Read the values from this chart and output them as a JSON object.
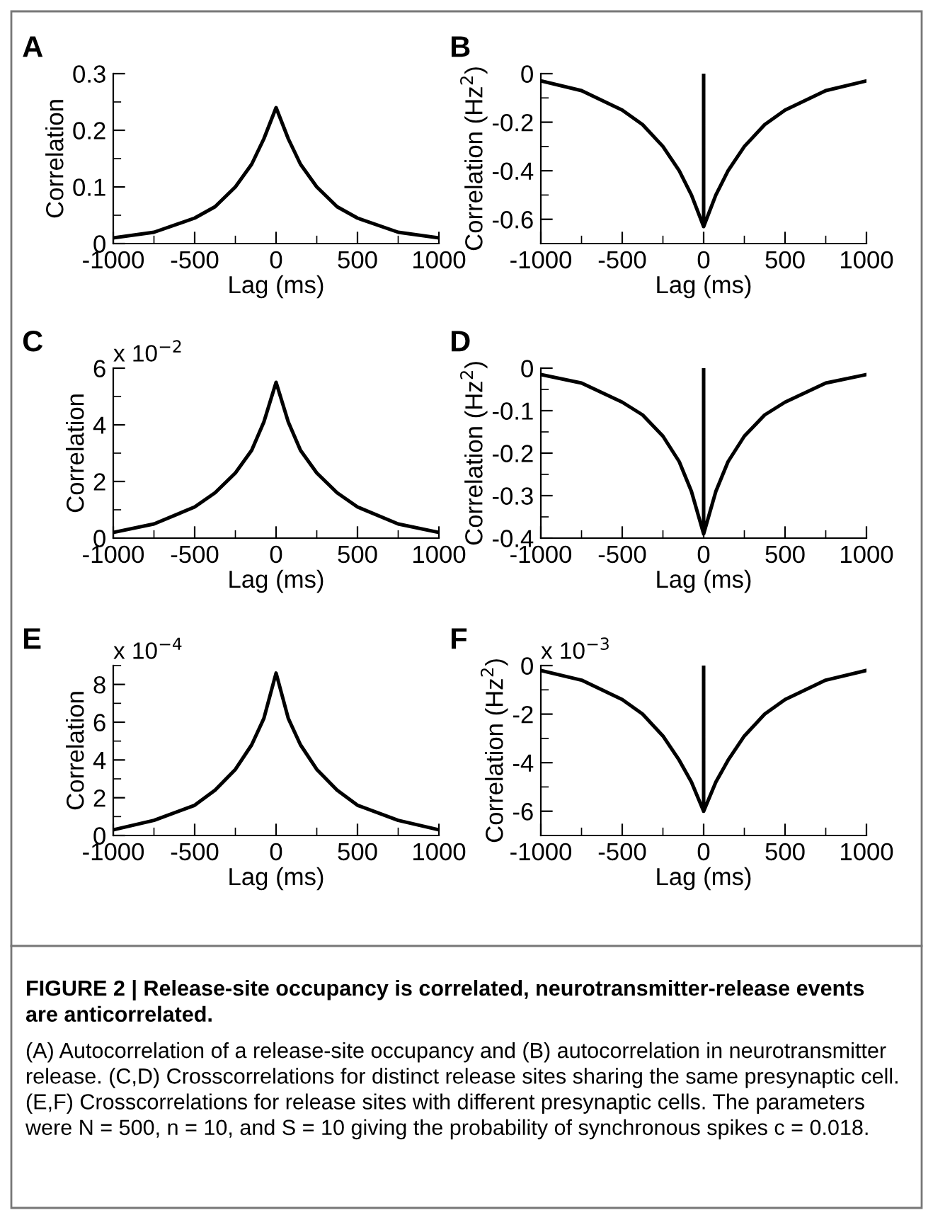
{
  "chart_data": [
    {
      "type": "line",
      "title": "A",
      "xlabel": "Lag (ms)",
      "ylabel": "Correlation",
      "xlim": [
        -1000,
        1000
      ],
      "xticks": [
        -1000,
        -500,
        0,
        500,
        1000
      ],
      "ylim": [
        0,
        0.3
      ],
      "yticks": [
        0,
        0.1,
        0.2,
        0.3
      ],
      "grid": false,
      "legend": false,
      "series": [
        {
          "color": "#000000",
          "x": [
            -1000,
            -750,
            -500,
            -375,
            -250,
            -150,
            -75,
            0,
            75,
            150,
            250,
            375,
            500,
            750,
            1000
          ],
          "values": [
            0.01,
            0.02,
            0.045,
            0.065,
            0.1,
            0.14,
            0.185,
            0.24,
            0.185,
            0.14,
            0.1,
            0.065,
            0.045,
            0.02,
            0.01
          ]
        }
      ]
    },
    {
      "type": "line",
      "title": "B",
      "xlabel": "Lag (ms)",
      "ylabel": "Correlation (Hz$^{2}$)",
      "xlim": [
        -1000,
        1000
      ],
      "xticks": [
        -1000,
        -500,
        0,
        500,
        1000
      ],
      "ylim": [
        -0.7,
        0
      ],
      "yticks": [
        -0.6,
        -0.4,
        -0.2,
        0
      ],
      "grid": false,
      "legend": false,
      "series": [
        {
          "color": "#000000",
          "x": [
            -1000,
            -750,
            -500,
            -375,
            -250,
            -150,
            -75,
            0,
            0,
            0,
            75,
            150,
            250,
            375,
            500,
            750,
            1000
          ],
          "values": [
            -0.03,
            -0.07,
            -0.15,
            -0.21,
            -0.3,
            -0.4,
            -0.5,
            -0.63,
            0,
            -0.63,
            -0.5,
            -0.4,
            -0.3,
            -0.21,
            -0.15,
            -0.07,
            -0.03
          ]
        }
      ]
    },
    {
      "type": "line",
      "title": "C",
      "xlabel": "Lag (ms)",
      "ylabel": "Correlation",
      "annotations": [
        "x 10$^{−2}$"
      ],
      "xlim": [
        -1000,
        1000
      ],
      "xticks": [
        -1000,
        -500,
        0,
        500,
        1000
      ],
      "ylim": [
        0,
        6
      ],
      "yticks": [
        0,
        2,
        4,
        6
      ],
      "grid": false,
      "legend": false,
      "series": [
        {
          "color": "#000000",
          "x": [
            -1000,
            -750,
            -500,
            -375,
            -250,
            -150,
            -75,
            0,
            75,
            150,
            250,
            375,
            500,
            750,
            1000
          ],
          "values": [
            0.2,
            0.5,
            1.1,
            1.6,
            2.3,
            3.1,
            4.1,
            5.5,
            4.1,
            3.1,
            2.3,
            1.6,
            1.1,
            0.5,
            0.2
          ]
        }
      ]
    },
    {
      "type": "line",
      "title": "D",
      "xlabel": "Lag (ms)",
      "ylabel": "Correlation (Hz$^{2}$)",
      "xlim": [
        -1000,
        1000
      ],
      "xticks": [
        -1000,
        -500,
        0,
        500,
        1000
      ],
      "ylim": [
        -0.4,
        0
      ],
      "yticks": [
        -0.4,
        -0.3,
        -0.2,
        -0.1,
        0
      ],
      "grid": false,
      "legend": false,
      "series": [
        {
          "color": "#000000",
          "x": [
            -1000,
            -750,
            -500,
            -375,
            -250,
            -150,
            -75,
            0,
            0,
            0,
            75,
            150,
            250,
            375,
            500,
            750,
            1000
          ],
          "values": [
            -0.015,
            -0.035,
            -0.08,
            -0.11,
            -0.16,
            -0.22,
            -0.29,
            -0.39,
            0,
            -0.39,
            -0.29,
            -0.22,
            -0.16,
            -0.11,
            -0.08,
            -0.035,
            -0.015
          ]
        }
      ]
    },
    {
      "type": "line",
      "title": "E",
      "xlabel": "Lag (ms)",
      "ylabel": "Correlation",
      "annotations": [
        "x 10$^{−4}$"
      ],
      "xlim": [
        -1000,
        1000
      ],
      "xticks": [
        -1000,
        -500,
        0,
        500,
        1000
      ],
      "ylim": [
        0,
        9
      ],
      "yticks": [
        0,
        2,
        4,
        6,
        8
      ],
      "grid": false,
      "legend": false,
      "series": [
        {
          "color": "#000000",
          "x": [
            -1000,
            -750,
            -500,
            -375,
            -250,
            -150,
            -75,
            0,
            75,
            150,
            250,
            375,
            500,
            750,
            1000
          ],
          "values": [
            0.3,
            0.8,
            1.6,
            2.4,
            3.5,
            4.8,
            6.2,
            8.6,
            6.2,
            4.8,
            3.5,
            2.4,
            1.6,
            0.8,
            0.3
          ]
        }
      ]
    },
    {
      "type": "line",
      "title": "F",
      "xlabel": "Lag (ms)",
      "ylabel": "Correlation (Hz$^{2}$)",
      "annotations": [
        "x 10$^{−3}$"
      ],
      "xlim": [
        -1000,
        1000
      ],
      "xticks": [
        -1000,
        -500,
        0,
        500,
        1000
      ],
      "ylim": [
        -7,
        0
      ],
      "yticks": [
        -6,
        -4,
        -2,
        0
      ],
      "grid": false,
      "legend": false,
      "series": [
        {
          "color": "#000000",
          "x": [
            -1000,
            -750,
            -500,
            -375,
            -250,
            -150,
            -75,
            0,
            0,
            0,
            75,
            150,
            250,
            375,
            500,
            750,
            1000
          ],
          "values": [
            -0.2,
            -0.6,
            -1.4,
            -2,
            -2.9,
            -3.9,
            -4.8,
            -6,
            0,
            -6,
            -4.8,
            -3.9,
            -2.9,
            -2,
            -1.4,
            -0.6,
            -0.2
          ]
        }
      ]
    },
    {
      "type": "other",
      "annotations": [
        "FIGURE 2 | Release-site occupancy is correlated, neurotransmitter-release events are anticorrelated.",
        "(A) Autocorrelation of a release-site occupancy and (B) autocorrelation in neurotransmitter release. (C,D) Crosscorrelations for distinct release sites sharing the same presynaptic cell. (E,F) Crosscorrelations for release sites with different presynaptic cells. The parameters were N = 500, n = 10, and S = 10 giving the probability of synchronous spikes c = 0.018."
      ]
    }
  ]
}
